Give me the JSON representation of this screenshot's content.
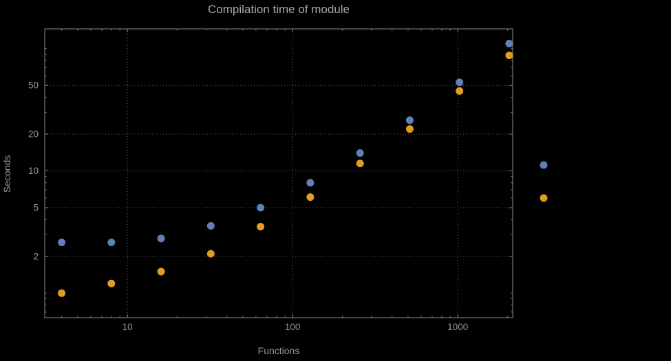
{
  "chart_data": {
    "type": "scatter",
    "title": "Compilation time of module",
    "xlabel": "Functions",
    "ylabel": "Seconds",
    "x_scale": "log",
    "y_scale": "log",
    "xlim": [
      3.16,
      2150
    ],
    "ylim": [
      0.63,
      145
    ],
    "grid": true,
    "grid_style": "dotted",
    "x_ticks": [
      {
        "value": 10,
        "label": "10"
      },
      {
        "value": 100,
        "label": "100"
      },
      {
        "value": 1000,
        "label": "1000"
      }
    ],
    "y_ticks": [
      {
        "value": 2,
        "label": "2"
      },
      {
        "value": 5,
        "label": "5"
      },
      {
        "value": 10,
        "label": "10"
      },
      {
        "value": 20,
        "label": "20"
      },
      {
        "value": 50,
        "label": "50"
      }
    ],
    "x": [
      4,
      8,
      16,
      32,
      64,
      128,
      256,
      512,
      1024,
      2048
    ],
    "series": [
      {
        "name": "blue",
        "color": "#5e82b5",
        "values": [
          2.6,
          2.6,
          2.8,
          3.55,
          5.0,
          8.0,
          14,
          26,
          53,
          110
        ]
      },
      {
        "name": "orange",
        "color": "#e19c24",
        "values": [
          1.0,
          1.2,
          1.5,
          2.1,
          3.5,
          6.1,
          11.5,
          22,
          45,
          88
        ]
      }
    ],
    "legend": {
      "position": "right",
      "labels_visible": false
    },
    "marker_size": 11,
    "colors": {
      "background": "#000000",
      "frame": "#8a8a8a",
      "grid": "#656565",
      "title_text": "#a8a8a8",
      "label_text": "#9a9a9a"
    }
  }
}
